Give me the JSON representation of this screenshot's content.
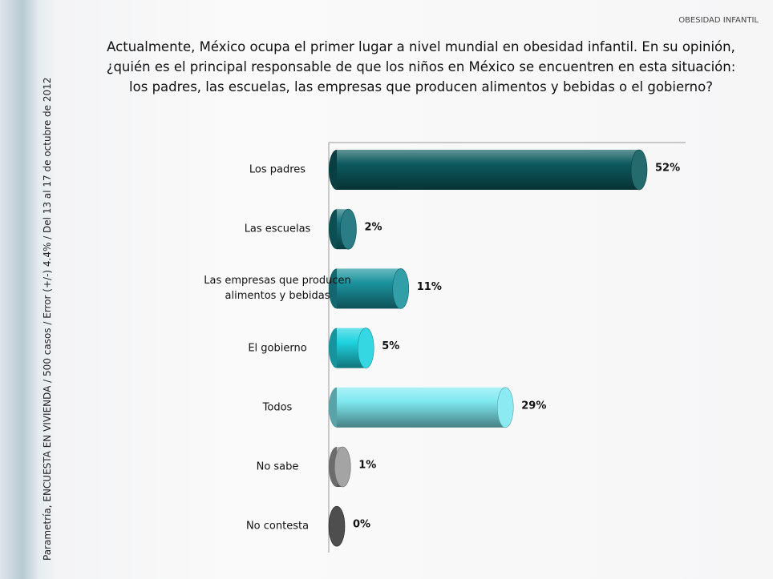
{
  "header": "OBESIDAD INFANTIL",
  "side_note": "Parametría, ENCUESTA EN VIVIENDA / 500 casos / Error (+/-) 4.4% / Del 13 al 17 de octubre de 2012",
  "chart_data": {
    "type": "bar",
    "orientation": "horizontal",
    "title_lines": [
      "Actualmente, México ocupa el primer lugar a nivel mundial en obesidad infantil. En su opinión,",
      "¿quién es el principal responsable de que los niños en México se encuentren en esta situación:",
      "los padres, las escuelas, las empresas que producen alimentos y bebidas o el gobierno?"
    ],
    "categories": [
      "Los padres",
      "Las escuelas",
      "Las empresas que producen alimentos y bebidas",
      "El gobierno",
      "Todos",
      "No sabe",
      "No contesta"
    ],
    "values": [
      52,
      2,
      11,
      5,
      29,
      1,
      0
    ],
    "value_labels": [
      "52%",
      "2%",
      "11%",
      "5%",
      "29%",
      "1%",
      "0%"
    ],
    "colors": [
      "#0d5a5e",
      "#136f77",
      "#1b939e",
      "#1fd3e0",
      "#7fe9f0",
      "#9a9a9a",
      "#3a3a3a"
    ],
    "xlim": [
      0,
      60
    ]
  }
}
